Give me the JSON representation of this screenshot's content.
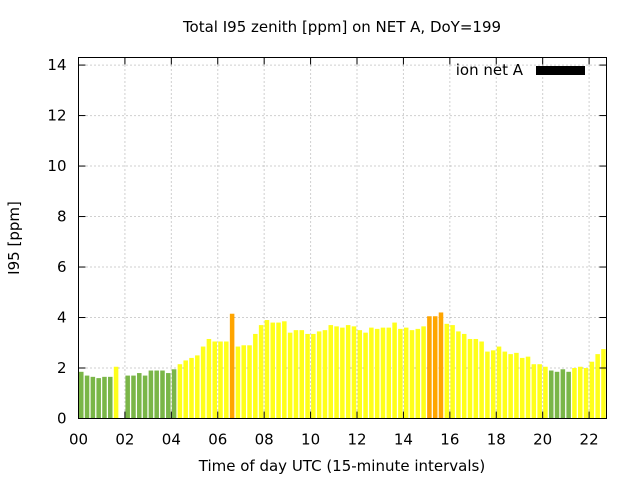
{
  "chart_data": {
    "type": "bar",
    "title": "Total I95 zenith [ppm] on NET A, DoY=199",
    "xlabel": "Time of day UTC (15-minute intervals)",
    "ylabel": "I95 [ppm]",
    "xlim": [
      0,
      22.75
    ],
    "ylim": [
      0,
      14.3
    ],
    "interval_hours": 0.25,
    "grid": true,
    "legend_position": "top-right",
    "xticks": [
      {
        "v": 0,
        "label": "00"
      },
      {
        "v": 2,
        "label": "02"
      },
      {
        "v": 4,
        "label": "04"
      },
      {
        "v": 6,
        "label": "06"
      },
      {
        "v": 8,
        "label": "08"
      },
      {
        "v": 10,
        "label": "10"
      },
      {
        "v": 12,
        "label": "12"
      },
      {
        "v": 14,
        "label": "14"
      },
      {
        "v": 16,
        "label": "16"
      },
      {
        "v": 18,
        "label": "18"
      },
      {
        "v": 20,
        "label": "20"
      },
      {
        "v": 22,
        "label": "22"
      }
    ],
    "yticks": [
      {
        "v": 0,
        "label": "0"
      },
      {
        "v": 2,
        "label": "2"
      },
      {
        "v": 4,
        "label": "4"
      },
      {
        "v": 6,
        "label": "6"
      },
      {
        "v": 8,
        "label": "8"
      },
      {
        "v": 10,
        "label": "10"
      },
      {
        "v": 12,
        "label": "12"
      },
      {
        "v": 14,
        "label": "14"
      }
    ],
    "series": [
      {
        "name": "ion net A",
        "color": "#000000"
      }
    ],
    "category_colors": {
      "green": "#7ab648",
      "yellow": "#ffff1a",
      "orange": "#ffa500"
    },
    "bars": [
      {
        "x": 0.0,
        "y": 1.85,
        "c": "green"
      },
      {
        "x": 0.25,
        "y": 1.7,
        "c": "green"
      },
      {
        "x": 0.5,
        "y": 1.65,
        "c": "green"
      },
      {
        "x": 0.75,
        "y": 1.6,
        "c": "green"
      },
      {
        "x": 1.0,
        "y": 1.65,
        "c": "green"
      },
      {
        "x": 1.25,
        "y": 1.65,
        "c": "green"
      },
      {
        "x": 1.5,
        "y": 2.05,
        "c": "yellow"
      },
      {
        "x": 1.75,
        "y": 0.0,
        "c": "green"
      },
      {
        "x": 2.0,
        "y": 1.7,
        "c": "green"
      },
      {
        "x": 2.25,
        "y": 1.7,
        "c": "green"
      },
      {
        "x": 2.5,
        "y": 1.8,
        "c": "green"
      },
      {
        "x": 2.75,
        "y": 1.7,
        "c": "green"
      },
      {
        "x": 3.0,
        "y": 1.9,
        "c": "green"
      },
      {
        "x": 3.25,
        "y": 1.9,
        "c": "green"
      },
      {
        "x": 3.5,
        "y": 1.9,
        "c": "green"
      },
      {
        "x": 3.75,
        "y": 1.8,
        "c": "green"
      },
      {
        "x": 4.0,
        "y": 1.95,
        "c": "green"
      },
      {
        "x": 4.25,
        "y": 2.15,
        "c": "yellow"
      },
      {
        "x": 4.5,
        "y": 2.3,
        "c": "yellow"
      },
      {
        "x": 4.75,
        "y": 2.4,
        "c": "yellow"
      },
      {
        "x": 5.0,
        "y": 2.5,
        "c": "yellow"
      },
      {
        "x": 5.25,
        "y": 2.85,
        "c": "yellow"
      },
      {
        "x": 5.5,
        "y": 3.15,
        "c": "yellow"
      },
      {
        "x": 5.75,
        "y": 3.05,
        "c": "yellow"
      },
      {
        "x": 6.0,
        "y": 3.05,
        "c": "yellow"
      },
      {
        "x": 6.25,
        "y": 3.05,
        "c": "yellow"
      },
      {
        "x": 6.5,
        "y": 4.15,
        "c": "orange"
      },
      {
        "x": 6.75,
        "y": 2.85,
        "c": "yellow"
      },
      {
        "x": 7.0,
        "y": 2.9,
        "c": "yellow"
      },
      {
        "x": 7.25,
        "y": 2.9,
        "c": "yellow"
      },
      {
        "x": 7.5,
        "y": 3.35,
        "c": "yellow"
      },
      {
        "x": 7.75,
        "y": 3.7,
        "c": "yellow"
      },
      {
        "x": 8.0,
        "y": 3.9,
        "c": "yellow"
      },
      {
        "x": 8.25,
        "y": 3.8,
        "c": "yellow"
      },
      {
        "x": 8.5,
        "y": 3.8,
        "c": "yellow"
      },
      {
        "x": 8.75,
        "y": 3.85,
        "c": "yellow"
      },
      {
        "x": 9.0,
        "y": 3.4,
        "c": "yellow"
      },
      {
        "x": 9.25,
        "y": 3.5,
        "c": "yellow"
      },
      {
        "x": 9.5,
        "y": 3.5,
        "c": "yellow"
      },
      {
        "x": 9.75,
        "y": 3.35,
        "c": "yellow"
      },
      {
        "x": 10.0,
        "y": 3.35,
        "c": "yellow"
      },
      {
        "x": 10.25,
        "y": 3.45,
        "c": "yellow"
      },
      {
        "x": 10.5,
        "y": 3.5,
        "c": "yellow"
      },
      {
        "x": 10.75,
        "y": 3.7,
        "c": "yellow"
      },
      {
        "x": 11.0,
        "y": 3.65,
        "c": "yellow"
      },
      {
        "x": 11.25,
        "y": 3.6,
        "c": "yellow"
      },
      {
        "x": 11.5,
        "y": 3.7,
        "c": "yellow"
      },
      {
        "x": 11.75,
        "y": 3.65,
        "c": "yellow"
      },
      {
        "x": 12.0,
        "y": 3.5,
        "c": "yellow"
      },
      {
        "x": 12.25,
        "y": 3.4,
        "c": "yellow"
      },
      {
        "x": 12.5,
        "y": 3.6,
        "c": "yellow"
      },
      {
        "x": 12.75,
        "y": 3.55,
        "c": "yellow"
      },
      {
        "x": 13.0,
        "y": 3.6,
        "c": "yellow"
      },
      {
        "x": 13.25,
        "y": 3.6,
        "c": "yellow"
      },
      {
        "x": 13.5,
        "y": 3.8,
        "c": "yellow"
      },
      {
        "x": 13.75,
        "y": 3.55,
        "c": "yellow"
      },
      {
        "x": 14.0,
        "y": 3.6,
        "c": "yellow"
      },
      {
        "x": 14.25,
        "y": 3.5,
        "c": "yellow"
      },
      {
        "x": 14.5,
        "y": 3.55,
        "c": "yellow"
      },
      {
        "x": 14.75,
        "y": 3.65,
        "c": "yellow"
      },
      {
        "x": 15.0,
        "y": 4.05,
        "c": "orange"
      },
      {
        "x": 15.25,
        "y": 4.05,
        "c": "orange"
      },
      {
        "x": 15.5,
        "y": 4.2,
        "c": "orange"
      },
      {
        "x": 15.75,
        "y": 3.75,
        "c": "yellow"
      },
      {
        "x": 16.0,
        "y": 3.7,
        "c": "yellow"
      },
      {
        "x": 16.25,
        "y": 3.45,
        "c": "yellow"
      },
      {
        "x": 16.5,
        "y": 3.35,
        "c": "yellow"
      },
      {
        "x": 16.75,
        "y": 3.15,
        "c": "yellow"
      },
      {
        "x": 17.0,
        "y": 3.15,
        "c": "yellow"
      },
      {
        "x": 17.25,
        "y": 3.05,
        "c": "yellow"
      },
      {
        "x": 17.5,
        "y": 2.65,
        "c": "yellow"
      },
      {
        "x": 17.75,
        "y": 2.7,
        "c": "yellow"
      },
      {
        "x": 18.0,
        "y": 2.85,
        "c": "yellow"
      },
      {
        "x": 18.25,
        "y": 2.65,
        "c": "yellow"
      },
      {
        "x": 18.5,
        "y": 2.55,
        "c": "yellow"
      },
      {
        "x": 18.75,
        "y": 2.6,
        "c": "yellow"
      },
      {
        "x": 19.0,
        "y": 2.4,
        "c": "yellow"
      },
      {
        "x": 19.25,
        "y": 2.45,
        "c": "yellow"
      },
      {
        "x": 19.5,
        "y": 2.15,
        "c": "yellow"
      },
      {
        "x": 19.75,
        "y": 2.15,
        "c": "yellow"
      },
      {
        "x": 20.0,
        "y": 2.05,
        "c": "yellow"
      },
      {
        "x": 20.25,
        "y": 1.9,
        "c": "green"
      },
      {
        "x": 20.5,
        "y": 1.85,
        "c": "green"
      },
      {
        "x": 20.75,
        "y": 1.95,
        "c": "green"
      },
      {
        "x": 21.0,
        "y": 1.85,
        "c": "green"
      },
      {
        "x": 21.25,
        "y": 2.0,
        "c": "yellow"
      },
      {
        "x": 21.5,
        "y": 2.05,
        "c": "yellow"
      },
      {
        "x": 21.75,
        "y": 2.0,
        "c": "yellow"
      },
      {
        "x": 22.0,
        "y": 2.25,
        "c": "yellow"
      },
      {
        "x": 22.25,
        "y": 2.55,
        "c": "yellow"
      },
      {
        "x": 22.5,
        "y": 2.75,
        "c": "yellow"
      }
    ]
  }
}
